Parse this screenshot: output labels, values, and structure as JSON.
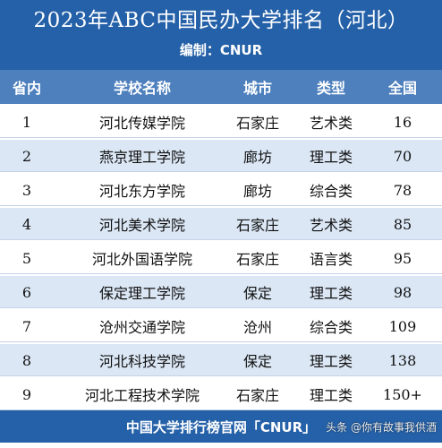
{
  "header": {
    "title": "2023年ABC中国民办大学排名（河北）",
    "editor": "编制：CNUR"
  },
  "columns": [
    "省内",
    "学校名称",
    "城市",
    "类型",
    "全国"
  ],
  "rows": [
    {
      "rank": "1",
      "name": "河北传媒学院",
      "city": "石家庄",
      "type": "艺术类",
      "national": "16"
    },
    {
      "rank": "2",
      "name": "燕京理工学院",
      "city": "廊坊",
      "type": "理工类",
      "national": "70"
    },
    {
      "rank": "3",
      "name": "河北东方学院",
      "city": "廊坊",
      "type": "综合类",
      "national": "78"
    },
    {
      "rank": "4",
      "name": "河北美术学院",
      "city": "石家庄",
      "type": "艺术类",
      "national": "85"
    },
    {
      "rank": "5",
      "name": "河北外国语学院",
      "city": "石家庄",
      "type": "语言类",
      "national": "95"
    },
    {
      "rank": "6",
      "name": "保定理工学院",
      "city": "保定",
      "type": "理工类",
      "national": "98"
    },
    {
      "rank": "7",
      "name": "沧州交通学院",
      "city": "沧州",
      "type": "综合类",
      "national": "109"
    },
    {
      "rank": "8",
      "name": "河北科技学院",
      "city": "保定",
      "type": "理工类",
      "national": "138"
    },
    {
      "rank": "9",
      "name": "河北工程技术学院",
      "city": "石家庄",
      "type": "理工类",
      "national": "150+"
    }
  ],
  "footer": {
    "text": "中国大学排行榜官网「CNUR」"
  },
  "watermark": "头条 @你有故事我供酒",
  "colors": {
    "header_bg": "#2561a8",
    "table_header_bg": "#4e80be",
    "alt_row_bg": "#dbe7f5"
  }
}
